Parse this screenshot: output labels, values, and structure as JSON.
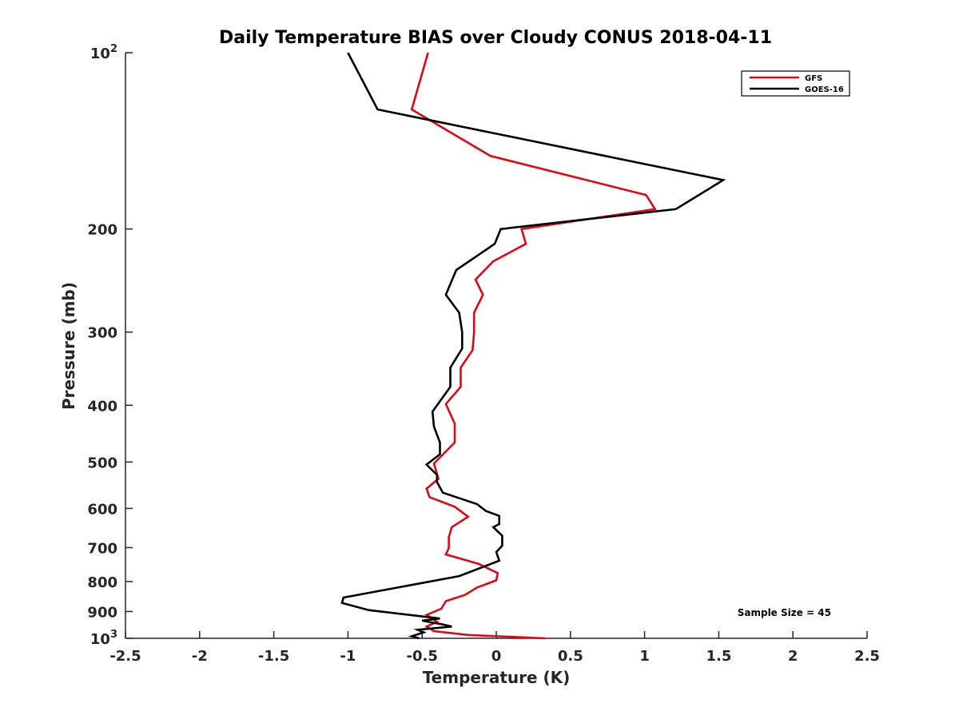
{
  "chart_data": {
    "type": "line",
    "title": "Daily Temperature BIAS over Cloudy CONUS 2018-04-11",
    "xlabel": "Temperature (K)",
    "ylabel": "Pressure (mb)",
    "xlim": [
      -2.5,
      2.5
    ],
    "ylim": [
      100,
      1000
    ],
    "y_scale": "log",
    "y_reversed": true,
    "grid": false,
    "legend_position": "top-right",
    "x_ticks": [
      "-2.5",
      "-2",
      "-1.5",
      "-1",
      "-0.5",
      "0",
      "0.5",
      "1",
      "1.5",
      "2",
      "2.5"
    ],
    "y_ticks": [
      {
        "value": 100,
        "base": "10",
        "exp": "2"
      },
      {
        "value": 200,
        "label": "200"
      },
      {
        "value": 300,
        "label": "300"
      },
      {
        "value": 400,
        "label": "400"
      },
      {
        "value": 500,
        "label": "500"
      },
      {
        "value": 600,
        "label": "600"
      },
      {
        "value": 700,
        "label": "700"
      },
      {
        "value": 800,
        "label": "800"
      },
      {
        "value": 900,
        "label": "900"
      },
      {
        "value": 1000,
        "base": "10",
        "exp": "3"
      }
    ],
    "annotation": "Sample Size = 45",
    "series": [
      {
        "name": "GFS",
        "color": "#e30613",
        "points": [
          [
            -0.46,
            100
          ],
          [
            -0.57,
            125
          ],
          [
            -0.04,
            150
          ],
          [
            1.01,
            175
          ],
          [
            1.07,
            185
          ],
          [
            0.17,
            200
          ],
          [
            0.2,
            212
          ],
          [
            -0.02,
            227
          ],
          [
            -0.14,
            244
          ],
          [
            -0.09,
            259
          ],
          [
            -0.15,
            278
          ],
          [
            -0.15,
            300
          ],
          [
            -0.16,
            322
          ],
          [
            -0.24,
            345
          ],
          [
            -0.24,
            372
          ],
          [
            -0.34,
            398
          ],
          [
            -0.28,
            430
          ],
          [
            -0.28,
            463
          ],
          [
            -0.42,
            503
          ],
          [
            -0.39,
            534
          ],
          [
            -0.47,
            555
          ],
          [
            -0.45,
            574
          ],
          [
            -0.28,
            596
          ],
          [
            -0.19,
            620
          ],
          [
            -0.3,
            646
          ],
          [
            -0.32,
            672
          ],
          [
            -0.32,
            701
          ],
          [
            -0.34,
            719
          ],
          [
            -0.12,
            746
          ],
          [
            0.01,
            774
          ],
          [
            0,
            796
          ],
          [
            -0.13,
            819
          ],
          [
            -0.21,
            843
          ],
          [
            -0.34,
            864
          ],
          [
            -0.37,
            890
          ],
          [
            -0.47,
            912
          ],
          [
            -0.4,
            937
          ],
          [
            -0.47,
            955
          ],
          [
            -0.42,
            972
          ],
          [
            -0.19,
            987
          ],
          [
            0.33,
            1000
          ]
        ]
      },
      {
        "name": "GOES-16",
        "color": "#000000",
        "points": [
          [
            -1.0,
            100
          ],
          [
            -0.8,
            125
          ],
          [
            1.53,
            165
          ],
          [
            1.21,
            185
          ],
          [
            0.03,
            200
          ],
          [
            -0.01,
            212
          ],
          [
            -0.27,
            235
          ],
          [
            -0.34,
            259
          ],
          [
            -0.25,
            278
          ],
          [
            -0.23,
            300
          ],
          [
            -0.23,
            320
          ],
          [
            -0.31,
            345
          ],
          [
            -0.31,
            372
          ],
          [
            -0.43,
            410
          ],
          [
            -0.42,
            435
          ],
          [
            -0.38,
            463
          ],
          [
            -0.38,
            485
          ],
          [
            -0.47,
            505
          ],
          [
            -0.4,
            526
          ],
          [
            -0.4,
            541
          ],
          [
            -0.36,
            564
          ],
          [
            -0.13,
            590
          ],
          [
            -0.07,
            606
          ],
          [
            0.02,
            618
          ],
          [
            0.02,
            638
          ],
          [
            -0.02,
            646
          ],
          [
            0.04,
            668
          ],
          [
            0.04,
            695
          ],
          [
            0.0,
            712
          ],
          [
            0.02,
            737
          ],
          [
            -0.25,
            783
          ],
          [
            -0.62,
            815
          ],
          [
            -1.03,
            852
          ],
          [
            -1.04,
            870
          ],
          [
            -0.86,
            895
          ],
          [
            -0.38,
            925
          ],
          [
            -0.5,
            933
          ],
          [
            -0.37,
            946
          ],
          [
            -0.3,
            955
          ],
          [
            -0.53,
            967
          ],
          [
            -0.49,
            977
          ],
          [
            -0.57,
            992
          ],
          [
            -0.52,
            1000
          ]
        ]
      }
    ]
  }
}
